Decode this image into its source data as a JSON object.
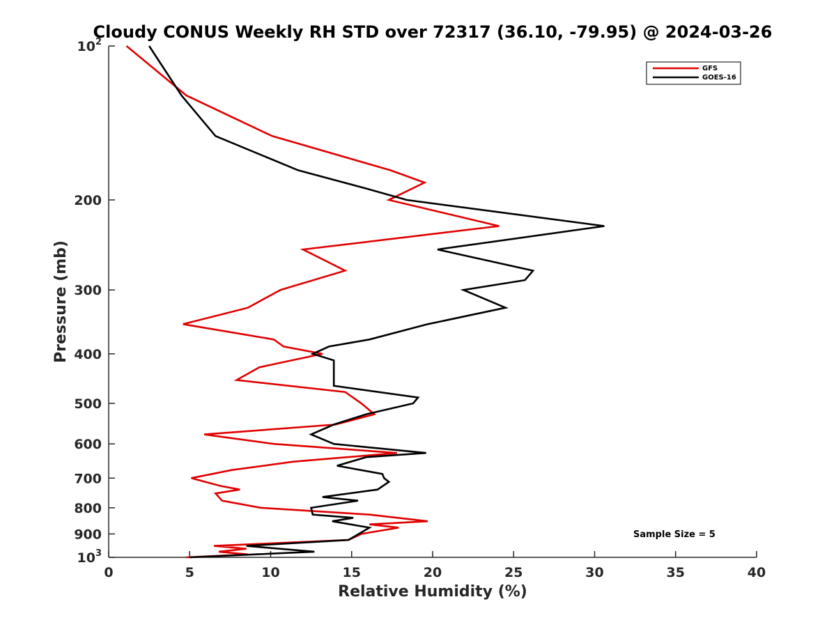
{
  "chart_data": {
    "type": "line",
    "title": "Cloudy CONUS Weekly RH STD over 72317 (36.10, -79.95) @ 2024-03-26",
    "xlabel": "Relative Humidity (%)",
    "ylabel": "Pressure (mb)",
    "xlim": [
      0,
      40
    ],
    "ylim": [
      100,
      1000
    ],
    "y_scale": "log",
    "y_reversed": true,
    "grid": false,
    "legend_position": "top-right",
    "x_ticks": [
      "0",
      "5",
      "10",
      "15",
      "20",
      "25",
      "30",
      "35",
      "40"
    ],
    "y_ticks": [
      {
        "value": 100,
        "base": "10",
        "exp": "2"
      },
      {
        "value": 200,
        "label": "200"
      },
      {
        "value": 300,
        "label": "300"
      },
      {
        "value": 400,
        "label": "400"
      },
      {
        "value": 500,
        "label": "500"
      },
      {
        "value": 600,
        "label": "600"
      },
      {
        "value": 700,
        "label": "700"
      },
      {
        "value": 800,
        "label": "800"
      },
      {
        "value": 900,
        "label": "900"
      },
      {
        "value": 1000,
        "base": "10",
        "exp": "3"
      }
    ],
    "annotation": "Sample Size = 5",
    "series": [
      {
        "name": "GFS",
        "color": "#e00000",
        "points": [
          [
            1.1,
            100
          ],
          [
            4.8,
            125
          ],
          [
            10.1,
            150
          ],
          [
            17.4,
            175
          ],
          [
            19.5,
            185
          ],
          [
            17.3,
            200
          ],
          [
            24.1,
            225
          ],
          [
            12.0,
            250
          ],
          [
            14.6,
            275
          ],
          [
            10.6,
            300
          ],
          [
            8.6,
            325
          ],
          [
            4.6,
            350
          ],
          [
            10.2,
            375
          ],
          [
            10.8,
            387
          ],
          [
            13.2,
            400
          ],
          [
            9.3,
            425
          ],
          [
            7.9,
            450
          ],
          [
            14.6,
            475
          ],
          [
            15.6,
            500
          ],
          [
            16.4,
            525
          ],
          [
            14.0,
            550
          ],
          [
            5.9,
            575
          ],
          [
            10.2,
            600
          ],
          [
            17.8,
            625
          ],
          [
            11.4,
            650
          ],
          [
            7.6,
            675
          ],
          [
            5.1,
            700
          ],
          [
            6.9,
            725
          ],
          [
            8.1,
            737
          ],
          [
            6.6,
            750
          ],
          [
            7.0,
            775
          ],
          [
            9.4,
            800
          ],
          [
            16.1,
            825
          ],
          [
            19.7,
            850
          ],
          [
            16.1,
            862
          ],
          [
            17.9,
            875
          ],
          [
            15.6,
            900
          ],
          [
            14.8,
            925
          ],
          [
            6.5,
            950
          ],
          [
            8.5,
            962
          ],
          [
            6.8,
            975
          ],
          [
            8.6,
            987
          ],
          [
            4.8,
            1000
          ]
        ]
      },
      {
        "name": "GOES-16",
        "color": "#000000",
        "points": [
          [
            2.5,
            100
          ],
          [
            4.5,
            125
          ],
          [
            6.6,
            150
          ],
          [
            11.7,
            175
          ],
          [
            15.9,
            190
          ],
          [
            18.4,
            200
          ],
          [
            30.6,
            225
          ],
          [
            20.3,
            250
          ],
          [
            26.2,
            275
          ],
          [
            25.7,
            287
          ],
          [
            21.9,
            300
          ],
          [
            24.5,
            325
          ],
          [
            19.7,
            350
          ],
          [
            16.1,
            375
          ],
          [
            13.6,
            387
          ],
          [
            12.6,
            400
          ],
          [
            13.9,
            412
          ],
          [
            13.9,
            437
          ],
          [
            13.9,
            462
          ],
          [
            19.1,
            487
          ],
          [
            18.8,
            500
          ],
          [
            15.9,
            525
          ],
          [
            13.9,
            550
          ],
          [
            12.5,
            575
          ],
          [
            13.9,
            600
          ],
          [
            19.6,
            625
          ],
          [
            15.9,
            637
          ],
          [
            14.1,
            662
          ],
          [
            16.9,
            687
          ],
          [
            17.0,
            700
          ],
          [
            17.3,
            712
          ],
          [
            16.6,
            737
          ],
          [
            13.2,
            762
          ],
          [
            15.4,
            775
          ],
          [
            12.5,
            800
          ],
          [
            12.6,
            825
          ],
          [
            15.1,
            837
          ],
          [
            13.8,
            850
          ],
          [
            16.1,
            875
          ],
          [
            14.8,
            925
          ],
          [
            8.5,
            950
          ],
          [
            12.7,
            975
          ],
          [
            5.0,
            1000
          ]
        ]
      }
    ]
  }
}
